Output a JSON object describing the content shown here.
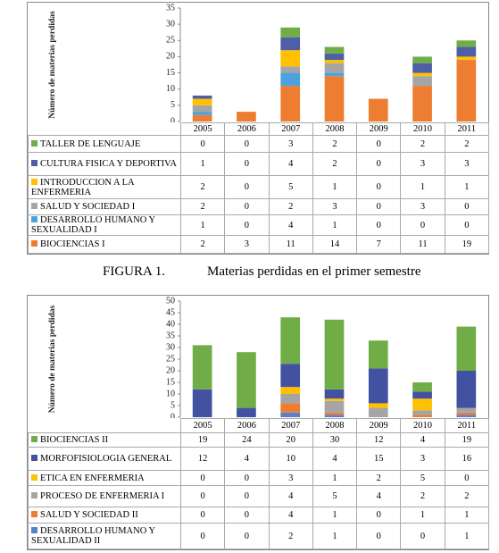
{
  "chart_data": [
    {
      "type": "bar",
      "stacked": true,
      "ylabel": "Número de materias perdidas",
      "categories": [
        "2005",
        "2006",
        "2007",
        "2008",
        "2009",
        "2010",
        "2011"
      ],
      "ylim": [
        0,
        35
      ],
      "yticks": [
        0,
        5,
        10,
        15,
        20,
        25,
        30,
        35
      ],
      "series": [
        {
          "name": "TALLER DE LENGUAJE",
          "color": "#70ad47",
          "values": [
            0,
            0,
            3,
            2,
            0,
            2,
            2
          ]
        },
        {
          "name": "CULTURA FISICA Y DEPORTIVA",
          "color": "#4e5fa8",
          "values": [
            1,
            0,
            4,
            2,
            0,
            3,
            3
          ]
        },
        {
          "name": "INTRODUCCION A LA ENFERMERIA",
          "color": "#ffc000",
          "values": [
            2,
            0,
            5,
            1,
            0,
            1,
            1
          ]
        },
        {
          "name": "SALUD Y SOCIEDAD I",
          "color": "#a5a5a5",
          "values": [
            2,
            0,
            2,
            3,
            0,
            3,
            0
          ]
        },
        {
          "name": "DESARROLLO HUMANO Y SEXUALIDAD I",
          "color": "#4aa3df",
          "values": [
            1,
            0,
            4,
            1,
            0,
            0,
            0
          ]
        },
        {
          "name": "BIOCIENCIAS I",
          "color": "#ed7d31",
          "values": [
            2,
            3,
            11,
            14,
            7,
            11,
            19
          ]
        }
      ],
      "caption_label": "FIGURA 1.",
      "caption_text": "Materias perdidas en el primer semestre"
    },
    {
      "type": "bar",
      "stacked": true,
      "ylabel": "Número de materias perdidas",
      "categories": [
        "2005",
        "2006",
        "2007",
        "2008",
        "2009",
        "2010",
        "2011"
      ],
      "ylim": [
        0,
        50
      ],
      "yticks": [
        0,
        5,
        10,
        15,
        20,
        25,
        30,
        35,
        40,
        45,
        50
      ],
      "series": [
        {
          "name": "BIOCIENCIAS II",
          "color": "#70ad47",
          "values": [
            19,
            24,
            20,
            30,
            12,
            4,
            19
          ]
        },
        {
          "name": "MORFOFISIOLOGIA GENERAL",
          "color": "#4352a0",
          "values": [
            12,
            4,
            10,
            4,
            15,
            3,
            16
          ]
        },
        {
          "name": "ETICA EN ENFERMERIA",
          "color": "#ffc000",
          "values": [
            0,
            0,
            3,
            1,
            2,
            5,
            0
          ]
        },
        {
          "name": "PROCESO DE ENFERMERIA I",
          "color": "#a5a5a5",
          "values": [
            0,
            0,
            4,
            5,
            4,
            2,
            2
          ]
        },
        {
          "name": "SALUD Y SOCIEDAD II",
          "color": "#ed7d31",
          "values": [
            0,
            0,
            4,
            1,
            0,
            1,
            1
          ]
        },
        {
          "name": "DESARROLLO HUMANO Y SEXUALIDAD II",
          "color": "#5b7fc8",
          "values": [
            0,
            0,
            2,
            1,
            0,
            0,
            1
          ]
        }
      ]
    }
  ]
}
